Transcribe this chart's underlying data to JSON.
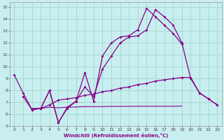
{
  "bg_color": "#c8eef0",
  "grid_color": "#a0d8c8",
  "line_color": "#880088",
  "xlabel": "Windchill (Refroidissement éolien,°C)",
  "xlim": [
    -0.5,
    23.5
  ],
  "ylim": [
    5,
    15.4
  ],
  "yticks": [
    5,
    6,
    7,
    8,
    9,
    10,
    11,
    12,
    13,
    14,
    15
  ],
  "xticks": [
    0,
    1,
    2,
    3,
    4,
    5,
    6,
    7,
    8,
    9,
    10,
    11,
    12,
    13,
    14,
    15,
    16,
    17,
    18,
    19,
    20,
    21,
    22,
    23
  ],
  "line1_x": [
    0,
    1,
    2,
    3,
    4,
    5,
    6,
    7,
    8,
    9,
    10,
    11,
    12,
    13,
    14,
    15,
    16,
    17,
    18,
    19
  ],
  "line1_y": [
    9.3,
    7.8,
    6.4,
    6.5,
    8.0,
    5.3,
    6.5,
    7.1,
    9.5,
    7.1,
    10.9,
    12.0,
    12.5,
    12.6,
    13.1,
    14.9,
    14.2,
    13.5,
    12.8,
    11.9
  ],
  "line2_x": [
    2,
    3,
    4,
    5,
    6,
    7,
    8,
    9,
    10,
    11,
    12,
    13,
    14,
    15,
    16,
    17,
    18,
    19,
    20,
    21,
    22,
    23
  ],
  "line2_y": [
    6.4,
    6.5,
    8.0,
    5.3,
    6.6,
    7.1,
    8.3,
    7.5,
    9.8,
    10.9,
    12.0,
    12.5,
    12.6,
    13.1,
    14.8,
    14.2,
    13.5,
    12.0,
    9.0,
    7.8,
    7.3,
    6.8
  ],
  "line3_x": [
    1,
    2,
    3,
    4,
    5,
    6,
    7,
    8,
    9,
    10,
    11,
    12,
    13,
    14,
    15,
    16,
    17,
    18,
    19,
    20,
    21,
    22,
    23
  ],
  "line3_y": [
    7.5,
    6.4,
    6.5,
    6.8,
    7.2,
    7.3,
    7.4,
    7.6,
    7.7,
    7.9,
    8.0,
    8.2,
    8.3,
    8.5,
    8.6,
    8.8,
    8.9,
    9.0,
    9.1,
    9.1,
    7.8,
    7.3,
    6.8
  ],
  "line4_x": [
    2,
    3,
    4,
    5,
    6,
    7,
    8,
    9,
    10,
    11,
    12,
    13,
    14,
    15,
    16,
    17,
    18,
    19
  ],
  "line4_y": [
    6.5,
    6.5,
    6.6,
    6.55,
    6.6,
    6.62,
    6.65,
    6.65,
    6.65,
    6.67,
    6.67,
    6.67,
    6.68,
    6.68,
    6.68,
    6.68,
    6.68,
    6.7
  ]
}
